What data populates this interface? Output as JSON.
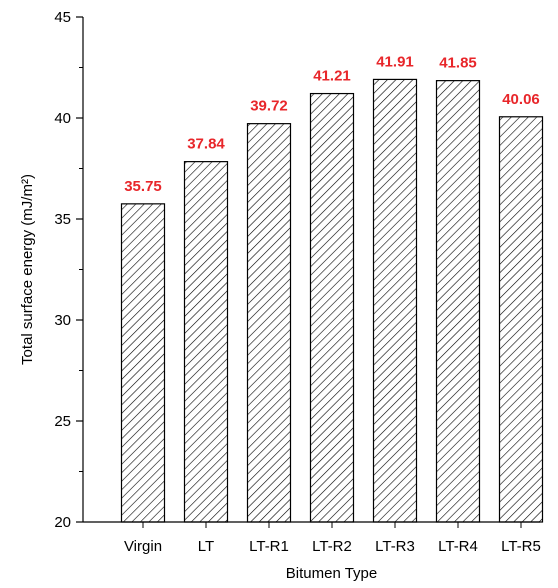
{
  "chart_data": {
    "type": "bar",
    "categories": [
      "Virgin",
      "LT",
      "LT-R1",
      "LT-R2",
      "LT-R3",
      "LT-R4",
      "LT-R5"
    ],
    "values": [
      35.75,
      37.84,
      39.72,
      41.21,
      41.91,
      41.85,
      40.06
    ],
    "data_labels": [
      "35.75",
      "37.84",
      "39.72",
      "41.21",
      "41.91",
      "41.85",
      "40.06"
    ],
    "xlabel": "Bitumen Type",
    "ylabel": "Total surface energy (mJ/m²)",
    "ylim": [
      20,
      45
    ],
    "yticks": [
      20,
      25,
      30,
      35,
      40,
      45
    ],
    "grid": false,
    "legend": "none",
    "bar_fill": "hatched",
    "colors": {
      "bar_stroke": "#000000",
      "hatch": "#000000",
      "data_label": "#e8262a",
      "axis": "#000000"
    }
  }
}
